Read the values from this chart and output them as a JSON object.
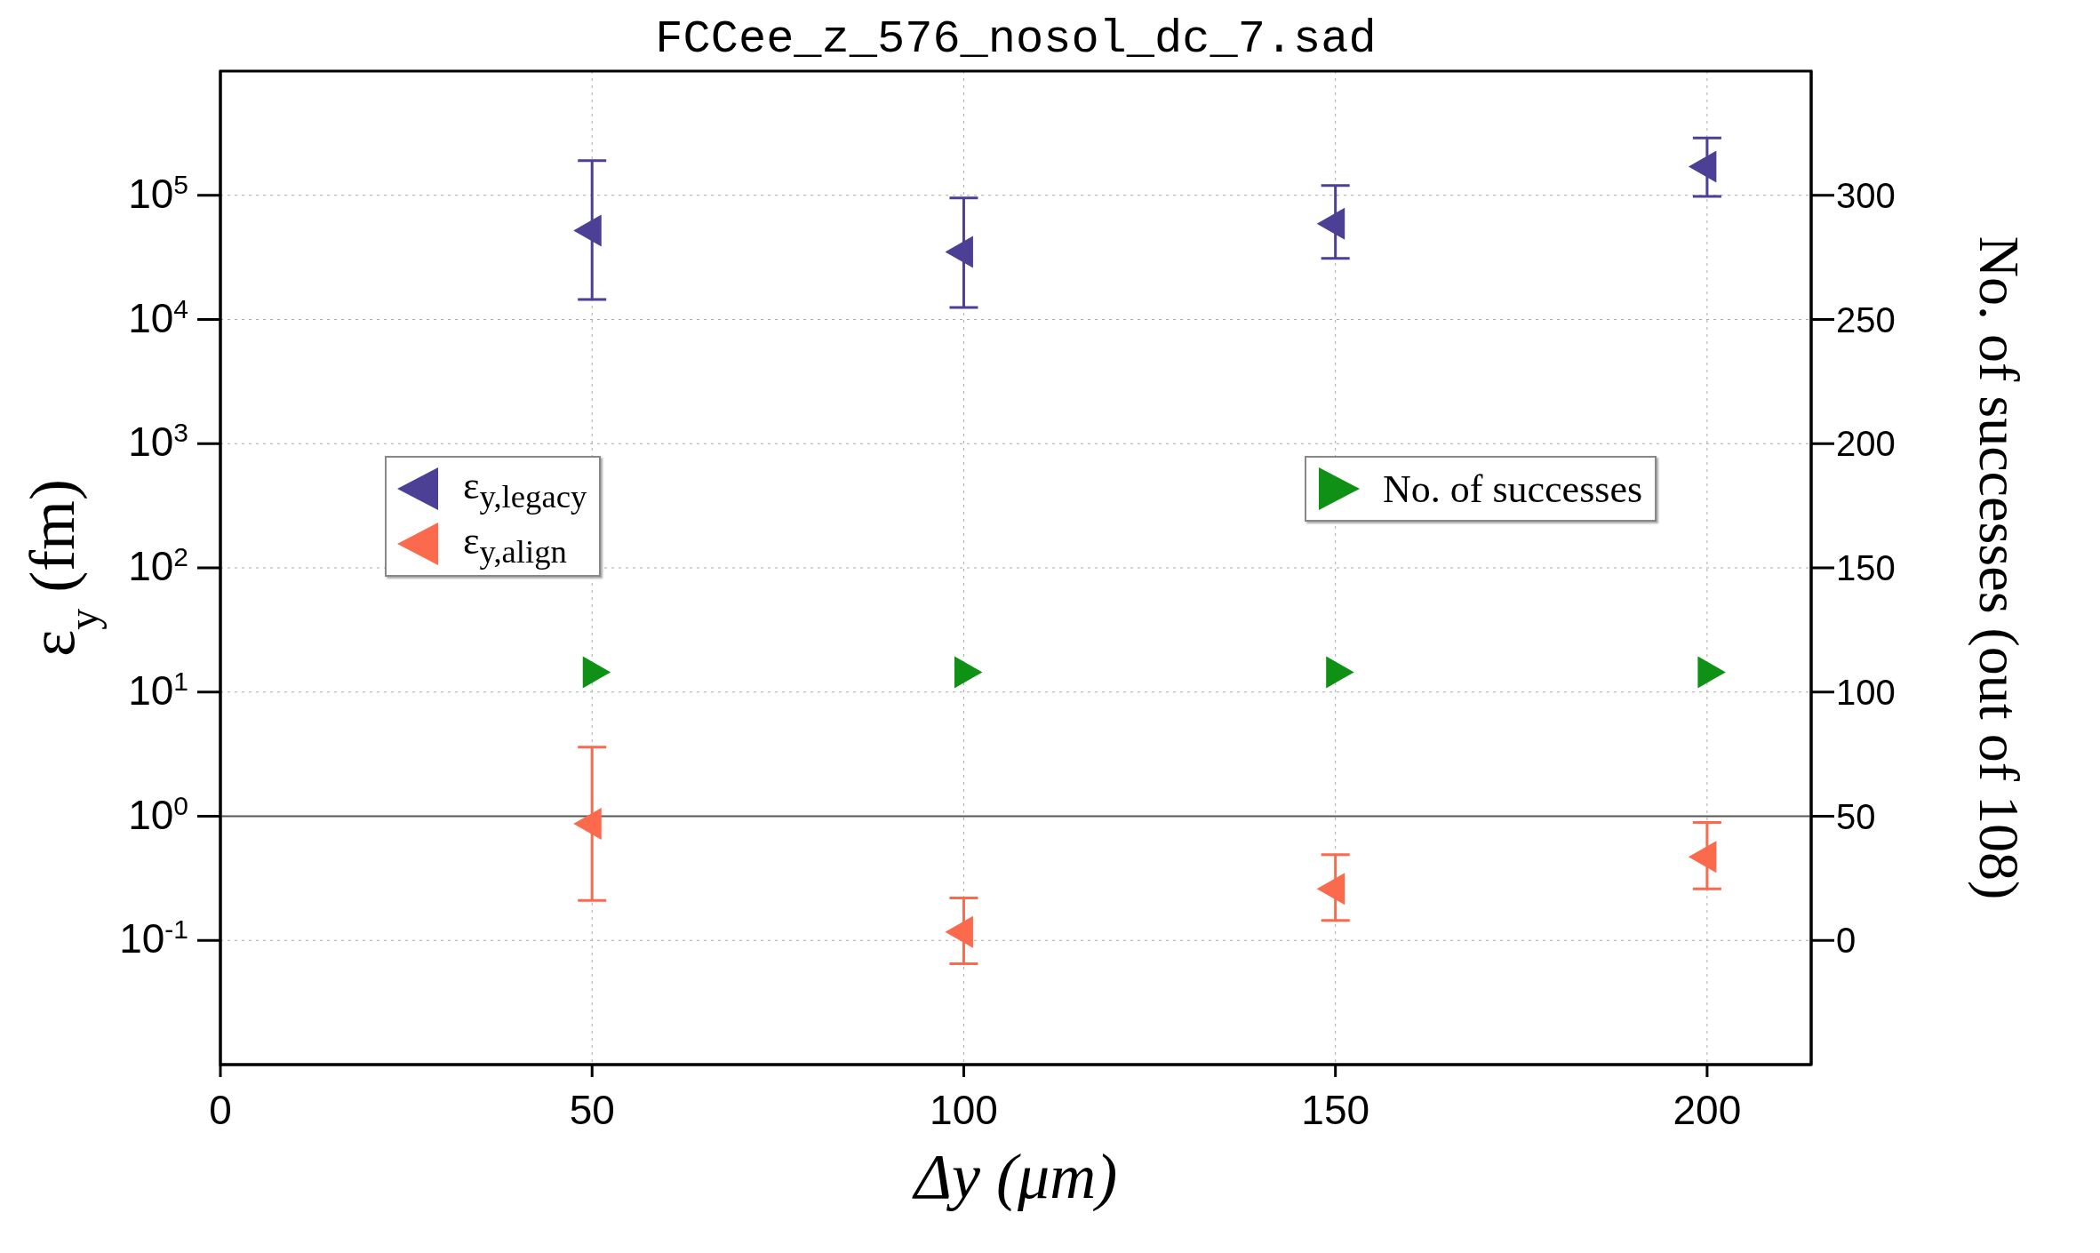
{
  "chart_data": {
    "type": "scatter",
    "title": "FCCee_z_576_nosol_dc_7.sad",
    "xlabel": "Δy (μm)",
    "ylabel": "ε$_{y}$ (fm)",
    "y2label": "No. of successes (out of 108)",
    "x": [
      50,
      100,
      150,
      200
    ],
    "series": [
      {
        "name": "ε$_{y,legacy}$",
        "color": "#4b3f96",
        "values": [
          52000,
          35000,
          59000,
          170000
        ],
        "errors": [
          [
            14500,
            190000
          ],
          [
            12500,
            95000
          ],
          [
            31000,
            120000
          ],
          [
            98000,
            290000
          ]
        ]
      },
      {
        "name": "ε$_{y,align}$",
        "color": "#fb6a4c",
        "values": [
          0.87,
          0.117,
          0.26,
          0.47
        ],
        "errors": [
          [
            0.21,
            3.6
          ],
          [
            0.065,
            0.22
          ],
          [
            0.145,
            0.49
          ],
          [
            0.26,
            0.89
          ]
        ]
      },
      {
        "name": "No. of successes",
        "color": "#0f9116",
        "axis": "y2",
        "values": [
          108,
          108,
          108,
          108
        ]
      }
    ],
    "xlim": [
      0,
      214
    ],
    "xticks": [
      0,
      50,
      100,
      150,
      200
    ],
    "log": "y",
    "ylim": [
      0.01,
      1000000
    ],
    "yticks": [
      {
        "value": 0.1,
        "label": "10$^{-1}$"
      },
      {
        "value": 1,
        "label": "10$^{0}$"
      },
      {
        "value": 10,
        "label": "10$^{1}$"
      },
      {
        "value": 100,
        "label": "10$^{2}$"
      },
      {
        "value": 1000,
        "label": "10$^{3}$"
      },
      {
        "value": 10000,
        "label": "10$^{4}$"
      },
      {
        "value": 100000,
        "label": "10$^{5}$"
      }
    ],
    "y2lim": [
      -50,
      350
    ],
    "y2ticks": [
      0,
      50,
      100,
      150,
      200,
      250,
      300
    ],
    "ref_lines": [
      {
        "axis": "y",
        "value": 1,
        "color": "#555555",
        "line_style": "solid"
      }
    ],
    "grid": true,
    "legend": "left",
    "marker": "triangle"
  }
}
